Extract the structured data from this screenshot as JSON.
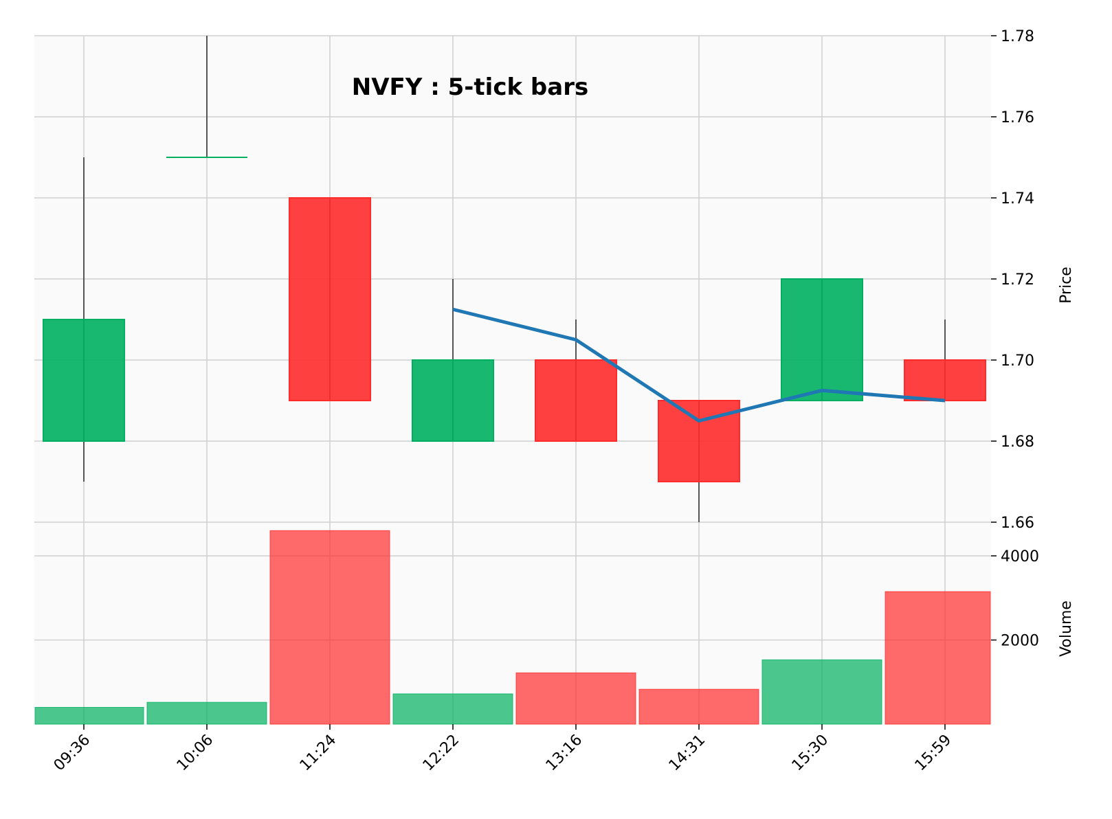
{
  "chart_data": {
    "type": "candlestick",
    "title": "NVFY : 5-tick bars",
    "categories": [
      "09:36",
      "10:06",
      "11:24",
      "12:22",
      "13:16",
      "14:31",
      "15:30",
      "15:59"
    ],
    "ohlc": [
      {
        "open": 1.68,
        "high": 1.75,
        "low": 1.67,
        "close": 1.71
      },
      {
        "open": 1.75,
        "high": 1.78,
        "low": 1.75,
        "close": 1.75
      },
      {
        "open": 1.74,
        "high": 1.74,
        "low": 1.69,
        "close": 1.69
      },
      {
        "open": 1.68,
        "high": 1.72,
        "low": 1.68,
        "close": 1.7
      },
      {
        "open": 1.7,
        "high": 1.71,
        "low": 1.68,
        "close": 1.68
      },
      {
        "open": 1.69,
        "high": 1.69,
        "low": 1.66,
        "close": 1.67
      },
      {
        "open": 1.69,
        "high": 1.72,
        "low": 1.69,
        "close": 1.72
      },
      {
        "open": 1.7,
        "high": 1.71,
        "low": 1.69,
        "close": 1.69
      }
    ],
    "moving_average": [
      null,
      null,
      null,
      1.7125,
      1.705,
      1.685,
      1.6925,
      1.69
    ],
    "volume": [
      400,
      520,
      4600,
      720,
      1220,
      830,
      1530,
      3150
    ],
    "price_axis": {
      "label": "Price",
      "ylim": [
        1.66,
        1.78
      ],
      "ticks": [
        1.66,
        1.68,
        1.7,
        1.72,
        1.74,
        1.76,
        1.78
      ]
    },
    "volume_axis": {
      "label": "Volume",
      "ylim": [
        0,
        4800
      ],
      "ticks": [
        2000,
        4000
      ]
    },
    "grid": true,
    "colors": {
      "up": "#00b060",
      "down": "#ff2b2b",
      "wick": "#555555",
      "moving_average": "#1f77b4",
      "panel_background": "#fafafa",
      "grid": "#d0d0d0"
    }
  }
}
